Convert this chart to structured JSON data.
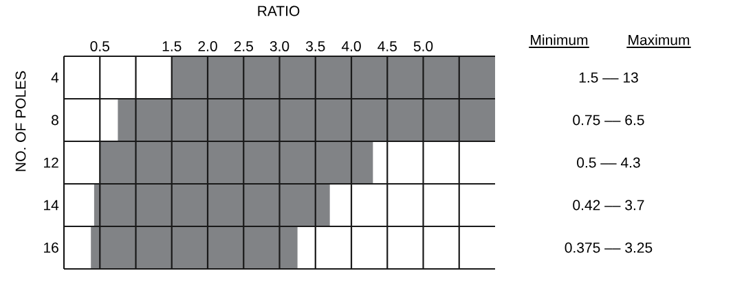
{
  "chart_data": {
    "type": "bar",
    "orientation": "horizontal",
    "xlabel": "RATIO",
    "ylabel": "NO. OF POLES",
    "categories": [
      "4",
      "8",
      "12",
      "14",
      "16"
    ],
    "base": [
      1.5,
      0.75,
      0.5,
      0.42,
      0.375
    ],
    "values": [
      11.5,
      5.75,
      3.8,
      3.28,
      2.875
    ],
    "color": "#818386",
    "xlim": [
      0,
      6
    ],
    "xticks": [
      {
        "value": 0,
        "label": null
      },
      0.5,
      {
        "value": 1.0,
        "label": null
      },
      1.5,
      {
        "value": 2,
        "label": "2.0"
      },
      2.5,
      {
        "value": 3,
        "label": "3.0"
      },
      3.5,
      {
        "value": 4,
        "label": "4.0"
      },
      4.5,
      {
        "value": 5,
        "label": "5.0"
      },
      {
        "value": 5.5,
        "label": null
      }
    ],
    "grid": true,
    "annotations": [
      "Minimum",
      "Maximum",
      "1.5  ––  13",
      "0.75  ––  6.5",
      "0.5  ––  4.3",
      "0.42  ––  3.7",
      "0.375  ––  3.25"
    ]
  }
}
